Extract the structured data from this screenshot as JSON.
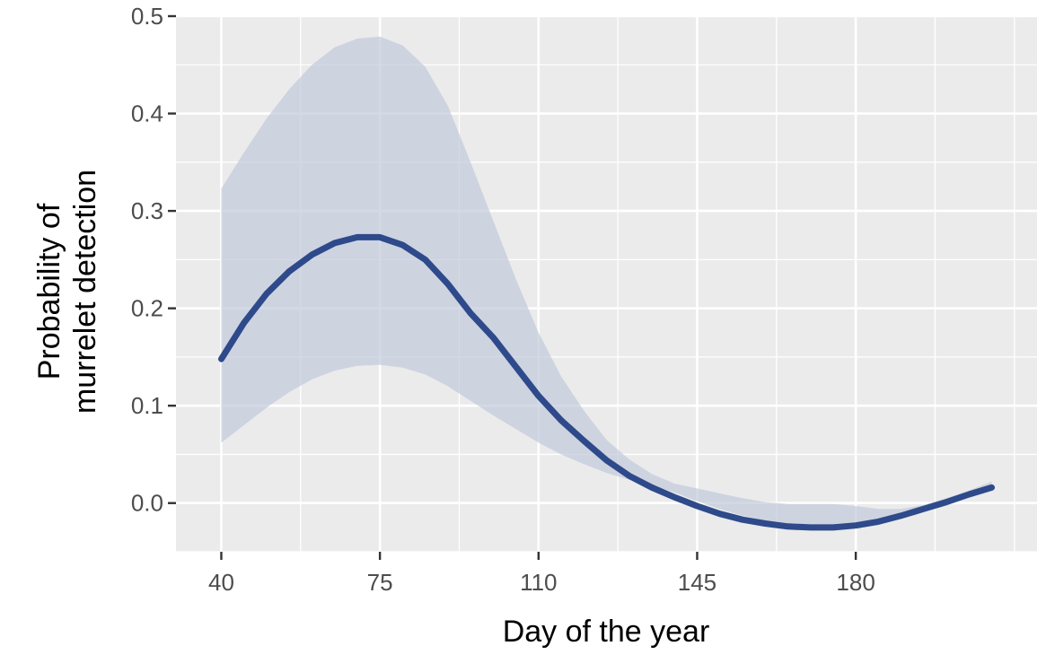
{
  "chart_data": {
    "type": "line",
    "title": "",
    "xlabel": "Day of the year",
    "ylabel_lines": [
      "Probability of",
      "murrelet detection"
    ],
    "xlim": [
      30,
      220
    ],
    "ylim": [
      -0.05,
      0.5
    ],
    "x_ticks": [
      40,
      75,
      110,
      145,
      180
    ],
    "x_tick_labels": [
      "40",
      "75",
      "110",
      "145",
      "180"
    ],
    "x_minor_ticks": [
      57.5,
      92.5,
      127.5,
      162.5,
      197.5,
      215
    ],
    "y_ticks": [
      0.0,
      0.1,
      0.2,
      0.3,
      0.4,
      0.5
    ],
    "y_tick_labels": [
      "0.0",
      "0.1",
      "0.2",
      "0.3",
      "0.4",
      "0.5"
    ],
    "y_minor_ticks": [
      -0.05,
      0.05,
      0.15,
      0.25,
      0.35,
      0.45
    ],
    "grid": true,
    "panel_background": "#ebebeb",
    "grid_color": "#ffffff",
    "line_color": "#2e4a8b",
    "ribbon_color": "#c2c9dc",
    "series": [
      {
        "x": [
          40,
          45,
          50,
          55,
          60,
          65,
          70,
          75,
          80,
          85,
          90,
          95,
          100,
          105,
          110,
          115,
          120,
          125,
          130,
          135,
          140,
          145,
          150,
          155,
          160,
          165,
          170,
          175,
          180,
          185,
          190,
          195,
          200,
          205,
          210
        ],
        "y": [
          0.148,
          0.185,
          0.215,
          0.238,
          0.255,
          0.267,
          0.273,
          0.273,
          0.265,
          0.25,
          0.225,
          0.195,
          0.17,
          0.14,
          0.11,
          0.085,
          0.064,
          0.044,
          0.028,
          0.016,
          0.006,
          -0.003,
          -0.011,
          -0.017,
          -0.021,
          -0.024,
          -0.025,
          -0.025,
          -0.023,
          -0.019,
          -0.013,
          -0.006,
          0.001,
          0.009,
          0.016
        ],
        "lower": [
          0.062,
          0.08,
          0.098,
          0.114,
          0.127,
          0.136,
          0.141,
          0.142,
          0.139,
          0.132,
          0.12,
          0.105,
          0.09,
          0.076,
          0.062,
          0.05,
          0.04,
          0.031,
          0.024,
          0.018,
          0.011,
          0.002,
          -0.006,
          -0.013,
          -0.018,
          -0.022,
          -0.024,
          -0.025,
          -0.024,
          -0.021,
          -0.016,
          -0.009,
          -0.002,
          0.006,
          0.013
        ],
        "upper": [
          0.323,
          0.36,
          0.395,
          0.425,
          0.45,
          0.468,
          0.477,
          0.479,
          0.47,
          0.448,
          0.408,
          0.35,
          0.29,
          0.23,
          0.175,
          0.13,
          0.095,
          0.065,
          0.045,
          0.03,
          0.02,
          0.015,
          0.01,
          0.005,
          0.001,
          -0.001,
          -0.001,
          -0.001,
          -0.003,
          -0.006,
          -0.006,
          -0.002,
          0.005,
          0.013,
          0.022
        ]
      }
    ]
  }
}
